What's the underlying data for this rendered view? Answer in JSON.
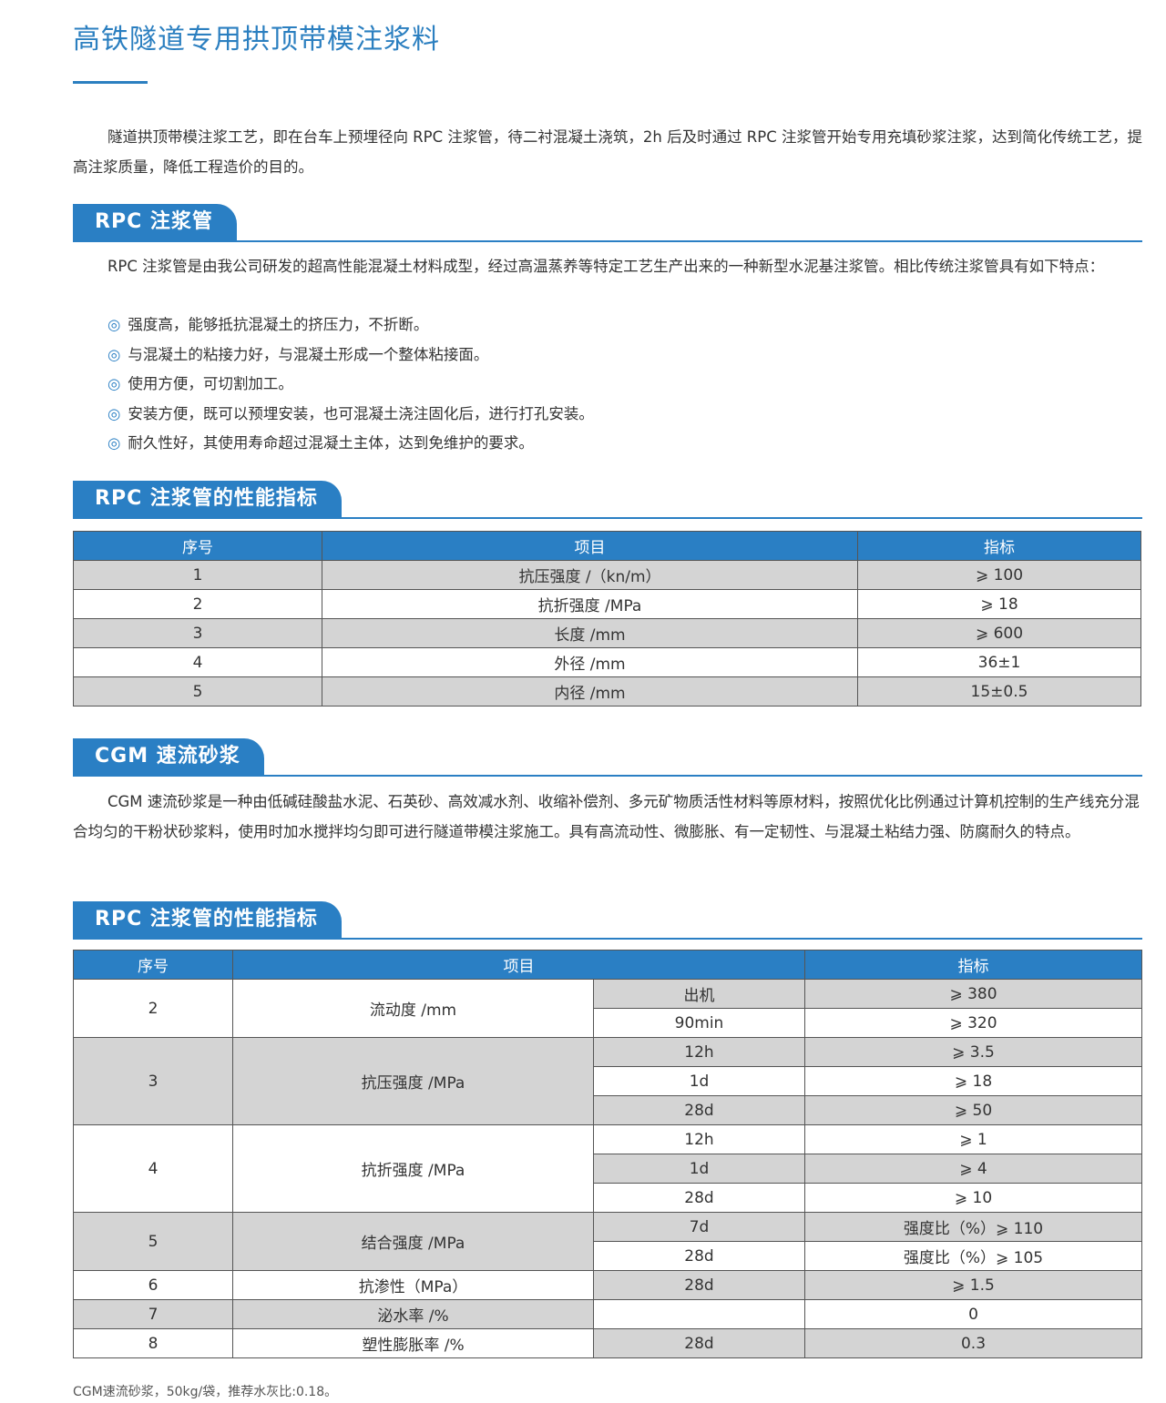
{
  "title": "高铁隧道专用拱顶带模注浆料",
  "intro": "隧道拱顶带模注浆工艺，即在台车上预埋径向 RPC 注浆管，待二衬混凝土浇筑，2h 后及时通过 RPC 注浆管开始专用充填砂浆注浆，达到简化传统工艺，提高注浆质量，降低工程造价的目的。",
  "sections": {
    "rpc_pipe": {
      "heading": "RPC 注浆管",
      "text": "RPC 注浆管是由我公司研发的超高性能混凝土材料成型，经过高温蒸养等特定工艺生产出来的一种新型水泥基注浆管。相比传统注浆管具有如下特点：",
      "bullet_symbol": "◎",
      "bullets": [
        "强度高，能够抵抗混凝土的挤压力，不折断。",
        "与混凝土的粘接力好，与混凝土形成一个整体粘接面。",
        "使用方便，可切割加工。",
        "安装方便，既可以预埋安装，也可混凝土浇注固化后，进行打孔安装。",
        "耐久性好，其使用寿命超过混凝土主体，达到免维护的要求。"
      ]
    },
    "rpc_perf": {
      "heading": "RPC 注浆管的性能指标",
      "headers": [
        "序号",
        "项目",
        "指标"
      ],
      "rows": [
        [
          "1",
          "抗压强度 /（kn/m）",
          "⩾ 100"
        ],
        [
          "2",
          "抗折强度 /MPa",
          "⩾ 18"
        ],
        [
          "3",
          "长度 /mm",
          "⩾ 600"
        ],
        [
          "4",
          "外径 /mm",
          "36±1"
        ],
        [
          "5",
          "内径 /mm",
          "15±0.5"
        ]
      ]
    },
    "cgm": {
      "heading": "CGM 速流砂浆",
      "text": "CGM 速流砂浆是一种由低碱硅酸盐水泥、石英砂、高效减水剂、收缩补偿剂、多元矿物质活性材料等原材料，按照优化比例通过计算机控制的生产线充分混合均匀的干粉状砂浆料，使用时加水搅拌均匀即可进行隧道带模注浆施工。具有高流动性、微膨胀、有一定韧性、与混凝土粘结力强、防腐耐久的特点。"
    },
    "cgm_perf": {
      "heading": "RPC 注浆管的性能指标",
      "headers": [
        "序号",
        "项目",
        "指标"
      ],
      "groups": [
        {
          "no": "2",
          "item": "流动度 /mm",
          "sub": [
            [
              "出机",
              "⩾ 380"
            ],
            [
              "90min",
              "⩾ 320"
            ]
          ]
        },
        {
          "no": "3",
          "item": "抗压强度 /MPa",
          "sub": [
            [
              "12h",
              "⩾ 3.5"
            ],
            [
              "1d",
              "⩾ 18"
            ],
            [
              "28d",
              "⩾ 50"
            ]
          ]
        },
        {
          "no": "4",
          "item": "抗折强度 /MPa",
          "sub": [
            [
              "12h",
              "⩾ 1"
            ],
            [
              "1d",
              "⩾ 4"
            ],
            [
              "28d",
              "⩾ 10"
            ]
          ]
        },
        {
          "no": "5",
          "item": "结合强度 /MPa",
          "sub": [
            [
              "7d",
              "强度比（%）⩾ 110"
            ],
            [
              "28d",
              "强度比（%）⩾ 105"
            ]
          ]
        },
        {
          "no": "6",
          "item": "抗渗性（MPa）",
          "sub": [
            [
              "28d",
              "⩾ 1.5"
            ]
          ]
        },
        {
          "no": "7",
          "item": "泌水率 /%",
          "sub": [
            [
              "",
              "0"
            ]
          ]
        },
        {
          "no": "8",
          "item": "塑性膨胀率 /%",
          "sub": [
            [
              "28d",
              "0.3"
            ]
          ]
        }
      ],
      "note": "CGM速流砂浆，50kg/袋，推荐水灰比:0.18。"
    }
  },
  "colors": {
    "accent": "#2a7fc4",
    "title": "#2b7fc0",
    "row_shade": "#d4d4d4"
  }
}
